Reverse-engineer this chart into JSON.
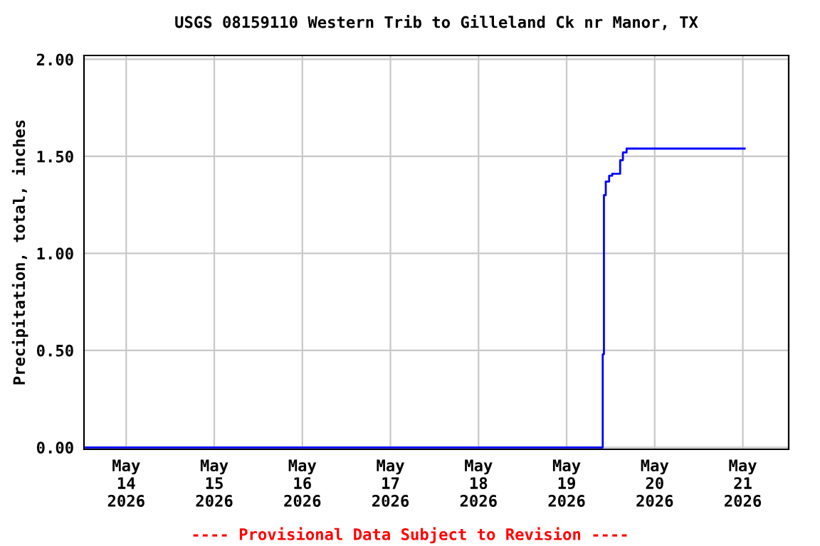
{
  "chart_data": {
    "type": "step",
    "title": "USGS 08159110 Western Trib to Gilleland Ck nr Manor, TX",
    "ylabel": "Precipitation, total, inches",
    "x": [
      "2026-05-13T13:00",
      "2026-05-19T09:45",
      "2026-05-19T09:50",
      "2026-05-19T10:10",
      "2026-05-19T10:40",
      "2026-05-19T11:35",
      "2026-05-19T12:25",
      "2026-05-19T14:35",
      "2026-05-19T15:20",
      "2026-05-19T16:20",
      "2026-05-21T00:30"
    ],
    "series": [
      {
        "color": "#0000ff",
        "values": [
          0,
          0,
          0.48,
          1.3,
          1.37,
          1.4,
          1.41,
          1.48,
          1.52,
          1.54,
          1.54
        ]
      }
    ],
    "xlim": [
      "2026-05-13T12:30",
      "2026-05-21T12:30"
    ],
    "xticks": [
      {
        "value": "2026-05-14",
        "label": "May\n14\n2026"
      },
      {
        "value": "2026-05-15",
        "label": "May\n15\n2026"
      },
      {
        "value": "2026-05-16",
        "label": "May\n16\n2026"
      },
      {
        "value": "2026-05-17",
        "label": "May\n17\n2026"
      },
      {
        "value": "2026-05-18",
        "label": "May\n18\n2026"
      },
      {
        "value": "2026-05-19",
        "label": "May\n19\n2026"
      },
      {
        "value": "2026-05-20",
        "label": "May\n20\n2026"
      },
      {
        "value": "2026-05-21",
        "label": "May\n21\n2026"
      }
    ],
    "ylim": [
      -0.01,
      2.02
    ],
    "yticks": [
      {
        "value": 0,
        "label": "0.00"
      },
      {
        "value": 0.5,
        "label": "0.50"
      },
      {
        "value": 1.0,
        "label": "1.00"
      },
      {
        "value": 1.5,
        "label": "1.50"
      },
      {
        "value": 2.0,
        "label": "2.00"
      }
    ],
    "grid": true,
    "annotations": [
      "---- Provisional Data Subject to Revision ----"
    ]
  }
}
